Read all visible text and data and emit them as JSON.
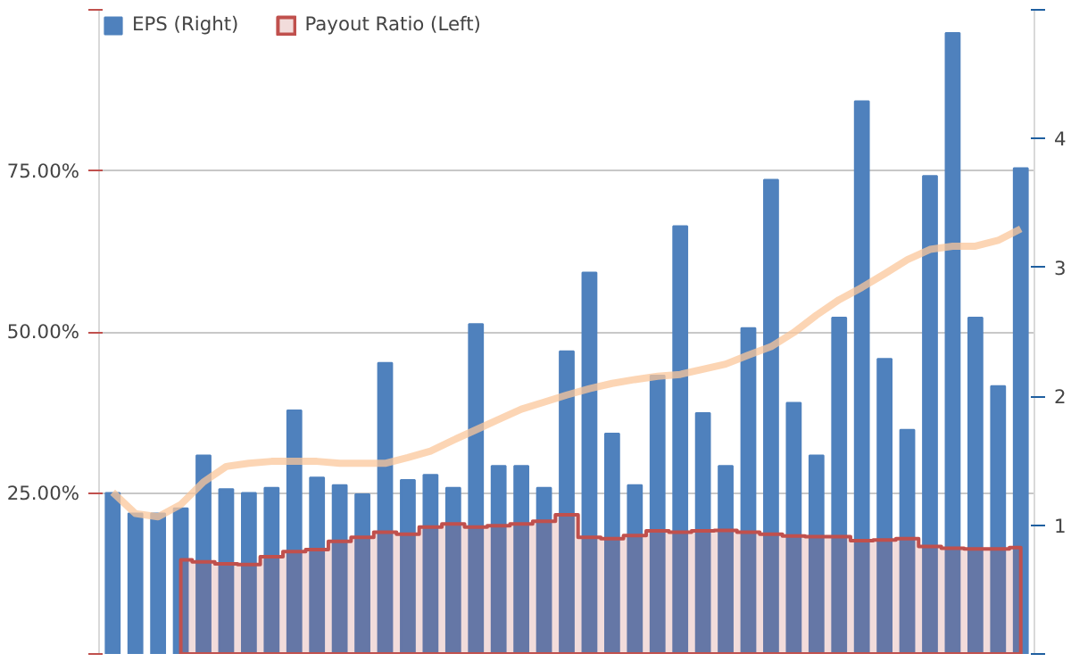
{
  "chart_data": {
    "type": "bar",
    "categories": [
      null,
      null,
      null,
      null,
      null,
      null,
      null,
      null,
      null,
      null,
      null,
      null,
      null,
      null,
      null,
      null,
      null,
      null,
      null,
      null,
      null,
      null,
      null,
      null,
      null,
      null,
      null,
      null,
      null,
      null,
      null,
      null,
      null,
      null,
      null,
      null,
      null,
      null,
      null,
      null,
      null
    ],
    "series": [
      {
        "name": "EPS (Right)",
        "axis": "y2",
        "color": "#4f81bd",
        "values": [
          1.25,
          1.09,
          1.09,
          1.13,
          1.54,
          1.28,
          1.25,
          1.29,
          1.89,
          1.37,
          1.31,
          1.24,
          2.26,
          1.35,
          1.39,
          1.29,
          2.56,
          1.46,
          1.46,
          1.29,
          2.35,
          2.96,
          1.71,
          1.31,
          2.16,
          3.32,
          1.87,
          1.46,
          2.53,
          3.68,
          1.95,
          1.54,
          2.61,
          4.29,
          2.29,
          1.74,
          3.71,
          4.82,
          2.61,
          2.08,
          3.77
        ]
      },
      {
        "name": "Payout Ratio (Left)",
        "type": "area",
        "axis": "y",
        "color": "#c0504d",
        "values": [
          null,
          null,
          null,
          14.6,
          14.3,
          14.0,
          13.9,
          15.1,
          15.9,
          16.2,
          17.5,
          18.1,
          18.9,
          18.6,
          19.7,
          20.2,
          19.7,
          19.9,
          20.2,
          20.6,
          21.6,
          18.1,
          17.9,
          18.4,
          19.1,
          18.9,
          19.1,
          19.2,
          18.9,
          18.6,
          18.3,
          18.2,
          18.2,
          17.6,
          17.7,
          17.9,
          16.7,
          16.4,
          16.3,
          16.3,
          16.5
        ]
      },
      {
        "type": "line",
        "axis": "y",
        "color": "#fbc79b",
        "values": [
          25.1,
          21.8,
          21.3,
          23.2,
          26.7,
          29.1,
          29.6,
          29.9,
          29.9,
          29.9,
          29.6,
          29.6,
          29.6,
          30.5,
          31.5,
          33.2,
          34.8,
          36.4,
          38.0,
          39.1,
          40.2,
          41.2,
          42.0,
          42.6,
          43.1,
          43.4,
          44.2,
          45.0,
          46.4,
          47.7,
          49.9,
          52.6,
          55.0,
          56.9,
          59.0,
          61.2,
          62.8,
          63.3,
          63.3,
          64.2,
          66.0
        ]
      }
    ],
    "ylim": [
      0,
      100
    ],
    "yticks": [
      {
        "value": 0,
        "label": null
      },
      {
        "value": 25,
        "label": "25.00%"
      },
      {
        "value": 50,
        "label": "50.00%"
      },
      {
        "value": 75,
        "label": "75.00%"
      },
      {
        "value": 100,
        "label": null
      }
    ],
    "y2lim": [
      0,
      5
    ],
    "y2ticks": [
      {
        "value": 0,
        "label": null
      },
      1,
      2,
      3,
      4,
      {
        "value": 5,
        "label": null
      }
    ],
    "grid": "y",
    "legend": "top left"
  }
}
